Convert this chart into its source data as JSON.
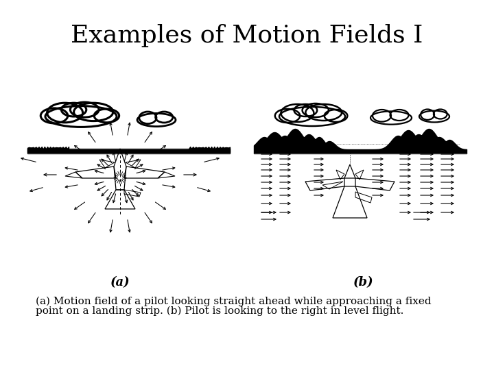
{
  "title": "Examples of Motion Fields I",
  "title_fontsize": 26,
  "label_a": "(a)",
  "label_b": "(b)",
  "caption_line1": "(a) Motion field of a pilot looking straight ahead while approaching a fixed",
  "caption_line2": "point on a landing strip. (b) Pilot is looking to the right in level flight.",
  "caption_fontsize": 11,
  "bg_color": "#ffffff",
  "text_color": "#000000",
  "font_family": "DejaVu Serif"
}
